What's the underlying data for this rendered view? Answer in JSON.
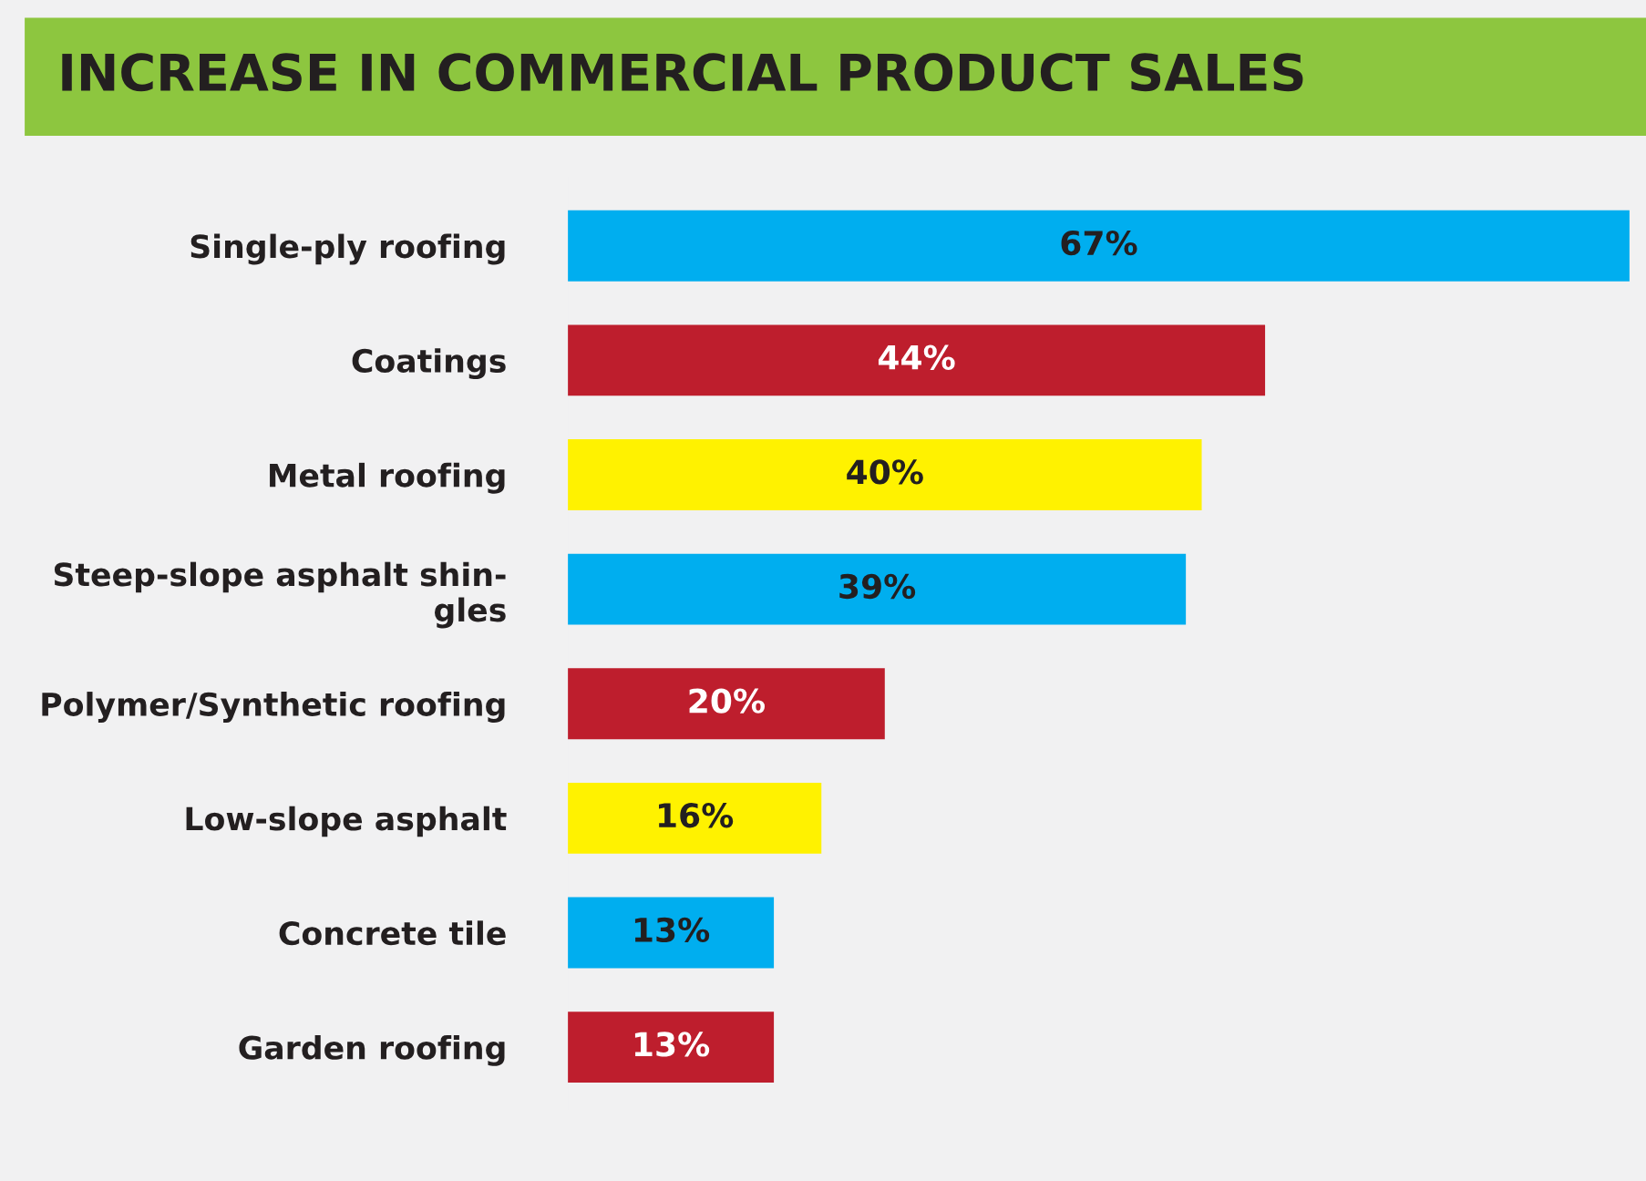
{
  "chart_data": {
    "type": "bar",
    "orientation": "horizontal",
    "title": "INCREASE IN COMMERCIAL PRODUCT SALES",
    "categories": [
      "Single-ply roofing",
      "Coatings",
      "Metal roofing",
      "Steep-slope asphalt shin-\ngles",
      "Polymer/Synthetic roofing",
      "Low-slope asphalt",
      "Concrete tile",
      "Garden roofing"
    ],
    "values": [
      67,
      44,
      40,
      39,
      20,
      16,
      13,
      13
    ],
    "colors": [
      "#00aeef",
      "#be1e2d",
      "#fff200",
      "#00aeef",
      "#be1e2d",
      "#fff200",
      "#00aeef",
      "#be1e2d"
    ],
    "value_labels": [
      "67%",
      "44%",
      "40%",
      "39%",
      "20%",
      "16%",
      "13%",
      "13%"
    ],
    "grid": false,
    "legend": false
  }
}
